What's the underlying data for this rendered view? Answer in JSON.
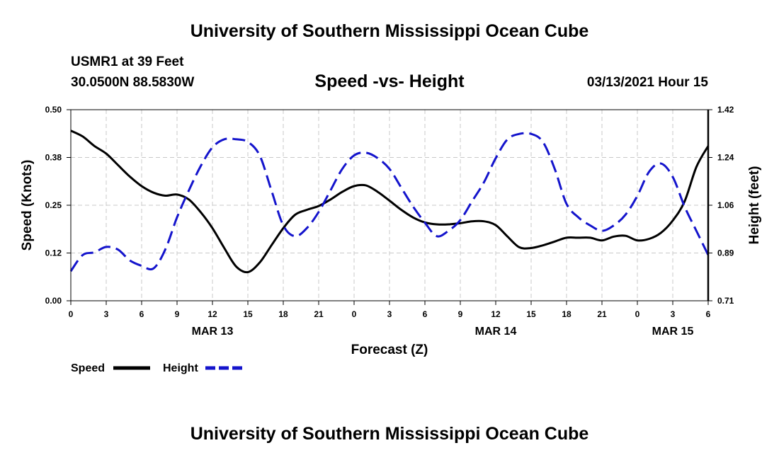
{
  "header": {
    "title": "University of Southern Mississippi Ocean Cube",
    "station": "USMR1 at 39 Feet",
    "coords": "30.0500N 88.5830W",
    "datetime": "03/13/2021 Hour 15"
  },
  "footer": {
    "title": "University of Southern Mississippi Ocean Cube"
  },
  "chart_data": {
    "type": "line",
    "title": "Speed -vs- Height",
    "xlabel": "Forecast (Z)",
    "ylabel": "Speed (Knots)",
    "y2label": "Height (feet)",
    "xlim": [
      0,
      54
    ],
    "ylim": [
      0,
      0.5
    ],
    "y2lim": [
      0.71,
      1.42
    ],
    "x_ticks": [
      0,
      3,
      6,
      9,
      12,
      15,
      18,
      21,
      24,
      27,
      30,
      33,
      36,
      39,
      42,
      45,
      48,
      51,
      54
    ],
    "x_tick_labels": [
      "0",
      "3",
      "6",
      "9",
      "12",
      "15",
      "18",
      "21",
      "0",
      "3",
      "6",
      "9",
      "12",
      "15",
      "18",
      "21",
      "0",
      "3",
      "6"
    ],
    "date_labels": [
      {
        "x": 12,
        "label": "MAR 13"
      },
      {
        "x": 36,
        "label": "MAR 14"
      },
      {
        "x": 51,
        "label": "MAR 15"
      }
    ],
    "y_ticks": [
      0.0,
      0.125,
      0.25,
      0.375,
      0.5
    ],
    "y_tick_labels": [
      "0.00",
      "0.12",
      "0.25",
      "0.38",
      "0.50"
    ],
    "y2_ticks": [
      0.71,
      0.8875,
      1.065,
      1.2425,
      1.42
    ],
    "y2_tick_labels": [
      "0.71",
      "0.89",
      "1.06",
      "1.24",
      "1.42"
    ],
    "grid": true,
    "legend": [
      {
        "name": "Speed",
        "color": "#000000",
        "style": "solid"
      },
      {
        "name": "Height",
        "color": "#1414cc",
        "style": "dashed"
      }
    ],
    "series": [
      {
        "name": "Speed",
        "axis": "left",
        "color": "#000000",
        "style": "solid",
        "x": [
          0,
          1,
          2,
          3,
          4,
          5,
          6,
          7,
          8,
          9,
          10,
          11,
          12,
          13,
          14,
          15,
          16,
          17,
          18,
          19,
          20,
          21,
          22,
          23,
          24,
          25,
          26,
          27,
          28,
          29,
          30,
          31,
          32,
          33,
          34,
          35,
          36,
          37,
          38,
          39,
          40,
          41,
          42,
          43,
          44,
          45,
          46,
          47,
          48,
          49,
          50,
          51,
          52,
          53,
          54
        ],
        "values": [
          0.445,
          0.43,
          0.405,
          0.385,
          0.355,
          0.325,
          0.3,
          0.283,
          0.275,
          0.278,
          0.265,
          0.232,
          0.19,
          0.138,
          0.09,
          0.075,
          0.1,
          0.145,
          0.19,
          0.225,
          0.238,
          0.248,
          0.265,
          0.285,
          0.3,
          0.302,
          0.285,
          0.262,
          0.238,
          0.218,
          0.205,
          0.2,
          0.2,
          0.203,
          0.208,
          0.208,
          0.198,
          0.168,
          0.14,
          0.138,
          0.145,
          0.155,
          0.165,
          0.165,
          0.165,
          0.158,
          0.168,
          0.17,
          0.158,
          0.162,
          0.178,
          0.21,
          0.26,
          0.35,
          0.405
        ]
      },
      {
        "name": "Height",
        "axis": "right",
        "color": "#1414cc",
        "style": "dashed",
        "x": [
          0,
          1,
          2,
          3,
          4,
          5,
          6,
          7,
          8,
          9,
          10,
          11,
          12,
          13,
          14,
          15,
          16,
          17,
          18,
          19,
          20,
          21,
          22,
          23,
          24,
          25,
          26,
          27,
          28,
          29,
          30,
          31,
          32,
          33,
          34,
          35,
          36,
          37,
          38,
          39,
          40,
          41,
          42,
          43,
          44,
          45,
          46,
          47,
          48,
          49,
          50,
          51,
          52,
          53,
          54
        ],
        "values": [
          0.82,
          0.88,
          0.89,
          0.91,
          0.9,
          0.86,
          0.84,
          0.83,
          0.9,
          1.02,
          1.12,
          1.21,
          1.28,
          1.31,
          1.31,
          1.3,
          1.25,
          1.12,
          0.99,
          0.95,
          0.98,
          1.04,
          1.12,
          1.2,
          1.25,
          1.26,
          1.24,
          1.2,
          1.13,
          1.06,
          1.0,
          0.95,
          0.97,
          1.01,
          1.08,
          1.15,
          1.24,
          1.31,
          1.33,
          1.33,
          1.3,
          1.2,
          1.07,
          1.02,
          0.99,
          0.97,
          0.99,
          1.03,
          1.1,
          1.19,
          1.22,
          1.17,
          1.06,
          0.97,
          0.88
        ]
      }
    ]
  }
}
